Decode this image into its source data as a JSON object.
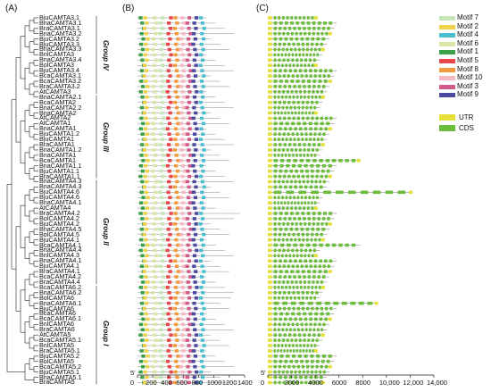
{
  "panels": {
    "a": "(A)",
    "b": "(B)",
    "c": "(C)"
  },
  "genes": [
    "BjuCAMTA3.1",
    "BnaCAMTA3.1",
    "BraCAMTA3.1",
    "BnaCAMTA3.2",
    "BjuCAMTA3.2",
    "BjuCAMTA3.3",
    "BnaCAMTA3.3",
    "BnlCAMTA3",
    "BnaCAMTA3.4",
    "BolCAMTA3",
    "BjuCAMTA3.4",
    "BcaCAMTA3.1",
    "BcaCAMTA3.2",
    "BraCAMTA3.2",
    "AtCAMTA3",
    "BnaCAMTA2.1",
    "BcaCAMTA2",
    "BnaCAMTA2.2",
    "BnaCAMTA2",
    "AtCAMTA2",
    "AtCAMTA1",
    "BnaCAMTA1",
    "BjuCAMTA1.2",
    "BjuCAMTA1",
    "BraCAMTA1",
    "BnaCAMTA1.2",
    "BnaCAMTA1",
    "BcaCAMTA1",
    "BnaCAMTA1.1",
    "BjuCAMTA1.1",
    "BraCAMTA1.1",
    "BnaCAMTA4.3",
    "BnaCAMTA4.3",
    "BjuCAMTA4.6",
    "BjuCAMTA4.6",
    "BnaCAMTA4.1",
    "AtCAMTA4",
    "BraCAMTA4.2",
    "BolCAMTA4.2",
    "BjuCAMTA4.2",
    "BnaCAMTA4.5",
    "BolCAMTA4.5",
    "BjuCAMTA4.1",
    "BcaCAMTA4.1",
    "BnaCAMTA4.4",
    "BnlCAMTA4.3",
    "BnaCAMTA4.1",
    "BjuCAMTA4.1",
    "BraCAMTA4.1",
    "BcaCAMTA4.2",
    "BraCAMTA4.4",
    "BcaCAMTA6.2",
    "BnaCAMTA6.2",
    "BolCAMTA6",
    "BnaCAMTA6.1",
    "BjuCAMTA6",
    "BcaCAMTA6",
    "BcaCAMTA6.1",
    "BnlCAMTA6",
    "BraCAMTA6",
    "AtCAMTA5",
    "BcaCAMTA5.1",
    "BnlCAMTA5",
    "BraCAMTA5.1",
    "BjuCAMTA5.2",
    "BolCAMTA5",
    "BcaCAMTA5.2",
    "BjuCAMTA5.1",
    "BnaCAMTA5.1",
    "BraCAMTA5"
  ],
  "groups": [
    "Group IV",
    "Group III",
    "Group II",
    "Group I"
  ],
  "motif_legend": [
    "Motif 7",
    "Motif 2",
    "Motif 4",
    "Motif 6",
    "Motif 1",
    "Motif 5",
    "Motif 8",
    "Motif 10",
    "Motif 3",
    "Motif 9"
  ],
  "motif_colors": [
    "#c6e6b8",
    "#f0d24a",
    "#4bbfd0",
    "#d8e6a8",
    "#3aa14a",
    "#e8474c",
    "#f39a3d",
    "#f6b9c4",
    "#d25a88",
    "#4b4aa0"
  ],
  "gene_legend": [
    "UTR",
    "CDS"
  ],
  "gene_colors": {
    "utr": "#e8e03a",
    "cds": "#6cbd3c"
  },
  "axis_b": {
    "zero": "0",
    "ticks": [
      "200",
      "400",
      "600",
      "800",
      "1000",
      "1200",
      "1400"
    ],
    "prefix": "5'"
  },
  "axis_c": {
    "zero": "0",
    "ticks": [
      "2000",
      "4000",
      "6000",
      "8000",
      "10,000",
      "12,000",
      "14,000"
    ],
    "prefix": "5'"
  }
}
